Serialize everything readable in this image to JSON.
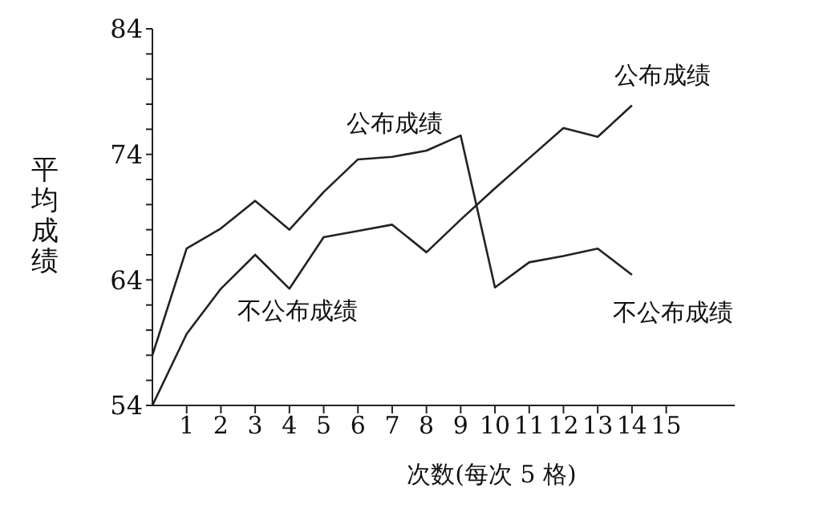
{
  "chart_data": {
    "type": "line",
    "xlabel": "次数(每次 5 格)",
    "ylabel": "平均成绩",
    "x": [
      0,
      1,
      2,
      3,
      4,
      5,
      6,
      7,
      8,
      9,
      10,
      11,
      12,
      13,
      14
    ],
    "series": [
      {
        "color": "#222222",
        "values": [
          58.0,
          66.5,
          68.1,
          70.3,
          68.0,
          71.0,
          73.6,
          73.8,
          74.3,
          75.5,
          63.4,
          65.4,
          65.9,
          66.5,
          64.4
        ]
      },
      {
        "color": "#222222",
        "values": [
          54.0,
          59.7,
          63.3,
          66.0,
          63.3,
          67.4,
          67.9,
          68.4,
          66.2,
          68.8,
          71.3,
          73.7,
          76.1,
          75.4,
          77.9
        ]
      }
    ],
    "xlim": [
      0,
      17
    ],
    "xticks": [
      1,
      2,
      3,
      4,
      5,
      6,
      7,
      8,
      9,
      10,
      11,
      12,
      13,
      14,
      15
    ],
    "ylim": [
      54,
      84
    ],
    "yticks": [
      54,
      {
        "value": 56,
        "label": null
      },
      {
        "value": 58,
        "label": null
      },
      {
        "value": 60,
        "label": null
      },
      {
        "value": 62,
        "label": null
      },
      64,
      {
        "value": 66,
        "label": null
      },
      {
        "value": 68,
        "label": null
      },
      {
        "value": 70,
        "label": null
      },
      {
        "value": 72,
        "label": null
      },
      74,
      {
        "value": 76,
        "label": null
      },
      {
        "value": 78,
        "label": null
      },
      {
        "value": 80,
        "label": null
      },
      {
        "value": 82,
        "label": null
      },
      84
    ],
    "annotations": [
      "公布成绩",
      "不公布成绩",
      "公布成绩",
      "不公布成绩"
    ],
    "grid": false,
    "legend": false,
    "marker": "none",
    "line_style": "solid"
  }
}
